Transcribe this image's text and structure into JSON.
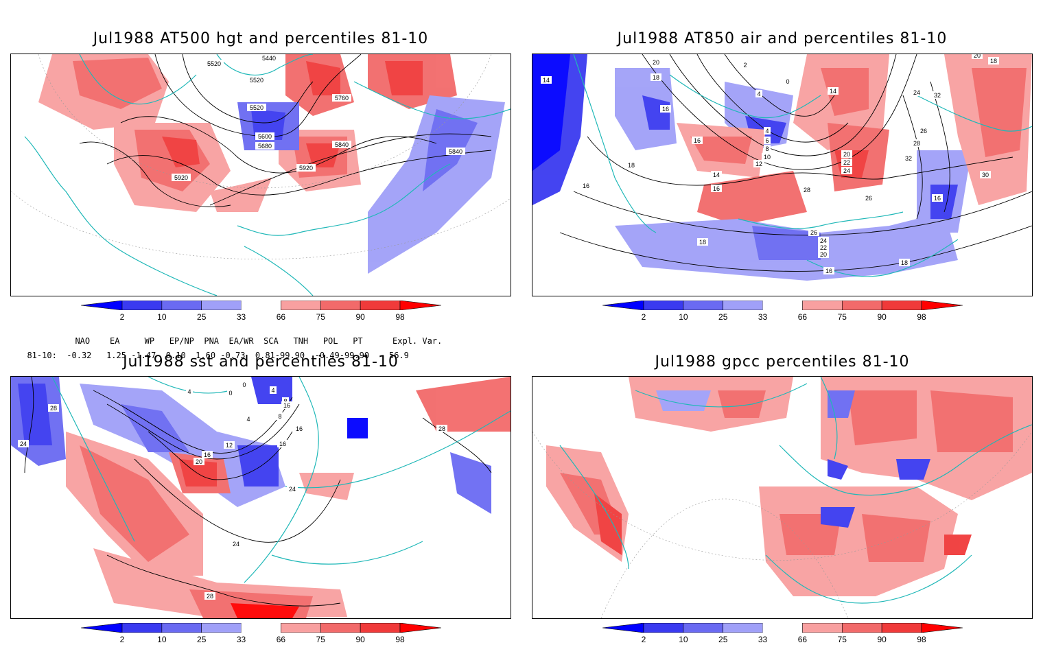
{
  "panels": [
    {
      "title": "Jul1988 AT500 hgt and percentiles 81-10",
      "contour_labels": [
        "5440",
        "5520",
        "5520",
        "5520",
        "5600",
        "5680",
        "5760",
        "5840",
        "5840",
        "5920",
        "5920"
      ]
    },
    {
      "title": "Jul1988 AT850 air and percentiles 81-10",
      "contour_labels": [
        "14",
        "20",
        "18",
        "16",
        "16",
        "18",
        "16",
        "14",
        "16",
        "12",
        "10",
        "8",
        "6",
        "4",
        "2",
        "4",
        "0",
        "14",
        "20",
        "22",
        "24",
        "28",
        "26",
        "26",
        "24",
        "22",
        "20",
        "18",
        "16",
        "18",
        "16",
        "30",
        "32",
        "28",
        "26",
        "24",
        "32",
        "20",
        "18"
      ]
    },
    {
      "title": "Jul1988 sst and percentiles 81-10",
      "contour_labels": [
        "28",
        "24",
        "4",
        "0",
        "0",
        "4",
        "8",
        "8",
        "4",
        "12",
        "16",
        "20",
        "16",
        "24",
        "24",
        "28",
        "28",
        "16",
        "16"
      ]
    },
    {
      "title": "Jul1988 gpcc percentiles 81-10",
      "contour_labels": []
    }
  ],
  "colorbar": {
    "ticks": [
      "2",
      "10",
      "25",
      "33",
      "66",
      "75",
      "90",
      "98"
    ],
    "colors": [
      "#0000ff",
      "#3a3af0",
      "#6a6af2",
      "#a0a0f8",
      "#ffffff",
      "#f8a0a0",
      "#f26a6a",
      "#f03a3a",
      "#ff0000"
    ]
  },
  "indices": {
    "headers": [
      "NAO",
      "EA",
      "WP",
      "EP/NP",
      "PNA",
      "EA/WR",
      "SCA",
      "TNH",
      "POL",
      "PT",
      "Expl. Var."
    ],
    "row_label": "81-10:",
    "values": [
      "-0.32",
      "1.25",
      "-1.47",
      "0.10",
      "1.60",
      "-0.73",
      "0.81",
      "-99.90",
      "-0.49",
      "-99.90",
      "56.9"
    ]
  },
  "colors": {
    "coast": "#20b8b8",
    "warm": "#f24040",
    "warm_light": "#f8a0a0",
    "cold": "#3a3af0",
    "cold_light": "#a0a0f8"
  }
}
